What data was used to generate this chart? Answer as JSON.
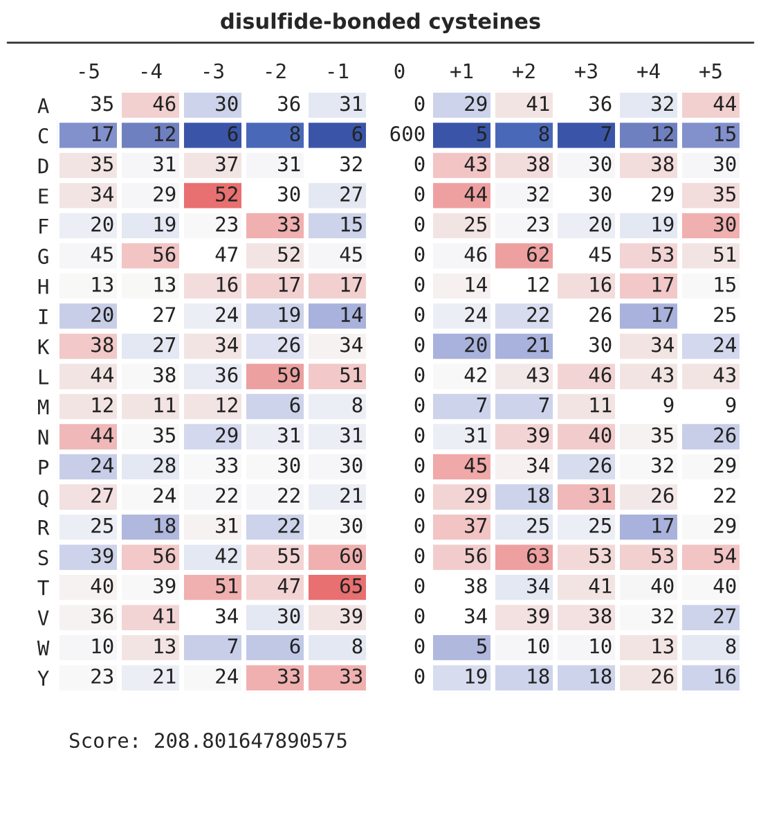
{
  "chart_data": {
    "type": "heatmap",
    "title": "disulfide-bonded cysteines",
    "categories": [
      "-5",
      "-4",
      "-3",
      "-2",
      "-1",
      "0",
      "+1",
      "+2",
      "+3",
      "+4",
      "+5"
    ],
    "y_categories": [
      "A",
      "C",
      "D",
      "E",
      "F",
      "G",
      "H",
      "I",
      "K",
      "L",
      "M",
      "N",
      "P",
      "Q",
      "R",
      "S",
      "T",
      "V",
      "W",
      "Y"
    ],
    "cells": [
      [
        35,
        46,
        30,
        36,
        31,
        0,
        29,
        41,
        36,
        32,
        44
      ],
      [
        17,
        12,
        6,
        8,
        6,
        600,
        5,
        8,
        7,
        12,
        15
      ],
      [
        35,
        31,
        37,
        31,
        32,
        0,
        43,
        38,
        30,
        38,
        30
      ],
      [
        34,
        29,
        52,
        30,
        27,
        0,
        44,
        32,
        30,
        29,
        35
      ],
      [
        20,
        19,
        23,
        33,
        15,
        0,
        25,
        23,
        20,
        19,
        30
      ],
      [
        45,
        56,
        47,
        52,
        45,
        0,
        46,
        62,
        45,
        53,
        51
      ],
      [
        13,
        13,
        16,
        17,
        17,
        0,
        14,
        12,
        16,
        17,
        15
      ],
      [
        20,
        27,
        24,
        19,
        14,
        0,
        24,
        22,
        26,
        17,
        25
      ],
      [
        38,
        27,
        34,
        26,
        34,
        0,
        20,
        21,
        30,
        34,
        24
      ],
      [
        44,
        38,
        36,
        59,
        51,
        0,
        42,
        43,
        46,
        43,
        43
      ],
      [
        12,
        11,
        12,
        6,
        8,
        0,
        7,
        7,
        11,
        9,
        9
      ],
      [
        44,
        35,
        29,
        31,
        31,
        0,
        31,
        39,
        40,
        35,
        26
      ],
      [
        24,
        28,
        33,
        30,
        30,
        0,
        45,
        34,
        26,
        32,
        29
      ],
      [
        27,
        24,
        22,
        22,
        21,
        0,
        29,
        18,
        31,
        26,
        22
      ],
      [
        25,
        18,
        31,
        22,
        30,
        0,
        37,
        25,
        25,
        17,
        29
      ],
      [
        39,
        56,
        42,
        55,
        60,
        0,
        56,
        63,
        53,
        53,
        54
      ],
      [
        40,
        39,
        51,
        47,
        65,
        0,
        38,
        34,
        41,
        40,
        40
      ],
      [
        36,
        41,
        34,
        30,
        39,
        0,
        34,
        39,
        38,
        32,
        27
      ],
      [
        10,
        13,
        7,
        6,
        8,
        0,
        5,
        10,
        10,
        13,
        8
      ],
      [
        23,
        21,
        24,
        33,
        33,
        0,
        19,
        18,
        18,
        26,
        16
      ]
    ],
    "colors": [
      [
        "#ffffff",
        "#f2d0d0",
        "#cdd3ea",
        "#ffffff",
        "#e4e8f3",
        "#ffffff",
        "#cdd3ea",
        "#f3e4e4",
        "#ffffff",
        "#e4e8f3",
        "#f2d0d0"
      ],
      [
        "#8290cc",
        "#6f80c0",
        "#3a55a8",
        "#4a68b8",
        "#3a55a8",
        "#ffffff",
        "#3a55a8",
        "#4a68b8",
        "#3a55a8",
        "#6f80c0",
        "#8290cc"
      ],
      [
        "#f3e4e4",
        "#f6f6f8",
        "#f3e4e4",
        "#f6f6f8",
        "#ffffff",
        "#ffffff",
        "#f2c4c4",
        "#f3dcdc",
        "#f6f6f8",
        "#f3dcdc",
        "#f6f6f8"
      ],
      [
        "#f3e4e4",
        "#f6f6f8",
        "#e87070",
        "#ffffff",
        "#e4e8f3",
        "#ffffff",
        "#eea0a0",
        "#f6f6f8",
        "#ffffff",
        "#ffffff",
        "#f3dcdc"
      ],
      [
        "#eceef6",
        "#e4e8f3",
        "#f8f8f8",
        "#f0b0b0",
        "#cdd3ea",
        "#ffffff",
        "#f3e4e4",
        "#f6f6f8",
        "#eceef6",
        "#e4e8f3",
        "#f0b0b0"
      ],
      [
        "#f6f6f8",
        "#f2c4c4",
        "#ffffff",
        "#f3e4e4",
        "#f6f6f8",
        "#ffffff",
        "#f6f6f8",
        "#eea0a0",
        "#ffffff",
        "#f3d4d4",
        "#f3e4e4"
      ],
      [
        "#f8f8f6",
        "#f8f8f6",
        "#f3dcdc",
        "#f2d0d0",
        "#f2d0d0",
        "#ffffff",
        "#f6f0f0",
        "#ffffff",
        "#f3dcdc",
        "#f2c8c8",
        "#f8f8f8"
      ],
      [
        "#c8cee8",
        "#ffffff",
        "#eceef6",
        "#cdd3ea",
        "#a8b2dc",
        "#ffffff",
        "#eceef6",
        "#d8dcef",
        "#ffffff",
        "#a8b2dc",
        "#ffffff"
      ],
      [
        "#f2c8c8",
        "#e4e8f3",
        "#f3e4e4",
        "#dde1f1",
        "#f6f2f2",
        "#ffffff",
        "#a8b2dc",
        "#a8b2dc",
        "#ffffff",
        "#f3e4e4",
        "#d3d8ee"
      ],
      [
        "#f3e4e4",
        "#f8f8f8",
        "#e8ebf4",
        "#eca0a0",
        "#f2c8c8",
        "#ffffff",
        "#f8f8f8",
        "#f3e8e8",
        "#f3d4d4",
        "#f3e4e4",
        "#f3e4e4"
      ],
      [
        "#f3e4e4",
        "#f3e4e4",
        "#f3e4e4",
        "#cdd3ea",
        "#eceef6",
        "#ffffff",
        "#cdd3ea",
        "#cdd3ea",
        "#f3e4e4",
        "#ffffff",
        "#ffffff"
      ],
      [
        "#f0b8b8",
        "#f8f8f8",
        "#d3d8ee",
        "#eceef6",
        "#eceef6",
        "#ffffff",
        "#eceef6",
        "#f3d4d4",
        "#f2cccc",
        "#f6f2f2",
        "#c8cee8"
      ],
      [
        "#c8cee8",
        "#e4e8f3",
        "#f8f8f8",
        "#f8f8f8",
        "#f6f6f8",
        "#ffffff",
        "#f0a8a8",
        "#f6f0f0",
        "#d8dcef",
        "#f8f8f8",
        "#f8f8f8"
      ],
      [
        "#f3e0e0",
        "#f8f8f8",
        "#f6f6f8",
        "#f6f6f8",
        "#eceef6",
        "#ffffff",
        "#f3d4d4",
        "#cdd3ea",
        "#f0b8b8",
        "#f3e8e8",
        "#ffffff"
      ],
      [
        "#eceef6",
        "#b0b8de",
        "#f6f2f2",
        "#cdd3ea",
        "#f8f8f8",
        "#ffffff",
        "#f2c4c4",
        "#e4e8f3",
        "#eceef6",
        "#a8b2dc",
        "#f8f8f8"
      ],
      [
        "#cdd3ea",
        "#f2c8c8",
        "#e4e8f3",
        "#f3d4d4",
        "#f0b0b0",
        "#ffffff",
        "#f2cccc",
        "#eea0a0",
        "#f3d8d8",
        "#f2d0d0",
        "#f2c4c4"
      ],
      [
        "#f6f2f2",
        "#f8f8f8",
        "#f0b0b0",
        "#f3d4d4",
        "#e87070",
        "#ffffff",
        "#ffffff",
        "#e4e8f3",
        "#f3e4e4",
        "#f6f6f6",
        "#f8f8f8"
      ],
      [
        "#f6f2f2",
        "#f3d4d4",
        "#ffffff",
        "#e4e8f3",
        "#f3e4e4",
        "#ffffff",
        "#ffffff",
        "#f3e0e0",
        "#f3e0e0",
        "#f8f8f8",
        "#cdd3ea"
      ],
      [
        "#f6f6f8",
        "#f3e4e4",
        "#c8cee8",
        "#c0c8e6",
        "#e4e8f3",
        "#ffffff",
        "#b0b8de",
        "#f6f6f8",
        "#f6f6f8",
        "#f3e4e4",
        "#e4e8f3"
      ],
      [
        "#f8f8f8",
        "#eceef6",
        "#f8f8f8",
        "#f0b0b0",
        "#f0b0b0",
        "#ffffff",
        "#d8dcef",
        "#cdd3ea",
        "#cdd3ea",
        "#f3e4e4",
        "#cdd3ea"
      ]
    ],
    "data_labels": true,
    "annotations": [
      "Score: 208.801647890575"
    ]
  }
}
